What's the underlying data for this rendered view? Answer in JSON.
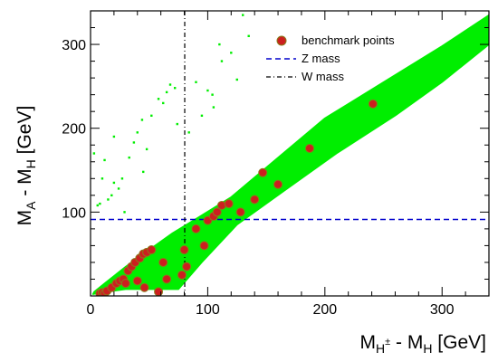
{
  "chart_data": {
    "type": "scatter",
    "xlabel": "M_{H^±} - M_H [GeV]",
    "ylabel": "M_A - M_H [GeV]",
    "xlim": [
      0,
      340
    ],
    "ylim": [
      0,
      340
    ],
    "x_ticks": [
      0,
      100,
      200,
      300
    ],
    "y_ticks": [
      100,
      200,
      300
    ],
    "grid": false,
    "legend_position": "top-right",
    "legend": {
      "benchmark": "benchmark points",
      "zmass": "Z mass",
      "wmass": "W mass"
    },
    "colors": {
      "band": "#00ee00",
      "benchmark": "#cc1f1f",
      "benchmark_edge": "#8a7a1a",
      "zmass": "#0000cc",
      "wmass": "#000000"
    },
    "reference_lines": {
      "zmass_y": 91.19,
      "wmass_x": 80.38
    },
    "allowed_region_polygon": [
      [
        2,
        2
      ],
      [
        10,
        4
      ],
      [
        30,
        8
      ],
      [
        55,
        8
      ],
      [
        75,
        8
      ],
      [
        95,
        40
      ],
      [
        125,
        85
      ],
      [
        165,
        125
      ],
      [
        210,
        170
      ],
      [
        260,
        215
      ],
      [
        300,
        255
      ],
      [
        340,
        300
      ],
      [
        340,
        335
      ],
      [
        300,
        298
      ],
      [
        250,
        255
      ],
      [
        200,
        212
      ],
      [
        160,
        165
      ],
      [
        120,
        118
      ],
      [
        90,
        92
      ],
      [
        70,
        75
      ],
      [
        50,
        55
      ],
      [
        30,
        35
      ],
      [
        12,
        15
      ],
      [
        3,
        5
      ]
    ],
    "sparse_points": [
      [
        3,
        170
      ],
      [
        6,
        108
      ],
      [
        8,
        110
      ],
      [
        10,
        140
      ],
      [
        12,
        162
      ],
      [
        15,
        115
      ],
      [
        18,
        120
      ],
      [
        20,
        135
      ],
      [
        24,
        128
      ],
      [
        27,
        140
      ],
      [
        29,
        100
      ],
      [
        33,
        165
      ],
      [
        37,
        183
      ],
      [
        40,
        195
      ],
      [
        44,
        210
      ],
      [
        48,
        175
      ],
      [
        52,
        215
      ],
      [
        58,
        235
      ],
      [
        62,
        230
      ],
      [
        65,
        243
      ],
      [
        68,
        252
      ],
      [
        72,
        248
      ],
      [
        74,
        205
      ],
      [
        84,
        195
      ],
      [
        90,
        255
      ],
      [
        95,
        215
      ],
      [
        100,
        245
      ],
      [
        104,
        240
      ],
      [
        110,
        300
      ],
      [
        112,
        280
      ],
      [
        120,
        290
      ],
      [
        125,
        258
      ],
      [
        130,
        335
      ],
      [
        135,
        310
      ],
      [
        105,
        225
      ],
      [
        20,
        190
      ],
      [
        45,
        148
      ]
    ],
    "series": [
      {
        "name": "benchmark points",
        "points": [
          [
            8,
            3
          ],
          [
            10,
            4
          ],
          [
            12,
            3
          ],
          [
            14,
            6
          ],
          [
            18,
            10
          ],
          [
            22,
            15
          ],
          [
            25,
            18
          ],
          [
            28,
            20
          ],
          [
            32,
            30
          ],
          [
            35,
            35
          ],
          [
            38,
            40
          ],
          [
            42,
            45
          ],
          [
            45,
            50
          ],
          [
            48,
            52
          ],
          [
            52,
            55
          ],
          [
            40,
            18
          ],
          [
            30,
            15
          ],
          [
            46,
            10
          ],
          [
            58,
            5
          ],
          [
            62,
            40
          ],
          [
            65,
            20
          ],
          [
            78,
            25
          ],
          [
            80,
            55
          ],
          [
            82,
            35
          ],
          [
            90,
            80
          ],
          [
            97,
            60
          ],
          [
            100,
            90
          ],
          [
            105,
            95
          ],
          [
            108,
            100
          ],
          [
            112,
            108
          ],
          [
            118,
            110
          ],
          [
            128,
            100
          ],
          [
            140,
            115
          ],
          [
            147,
            147
          ],
          [
            160,
            133
          ],
          [
            187,
            176
          ],
          [
            241,
            229
          ]
        ]
      }
    ]
  }
}
